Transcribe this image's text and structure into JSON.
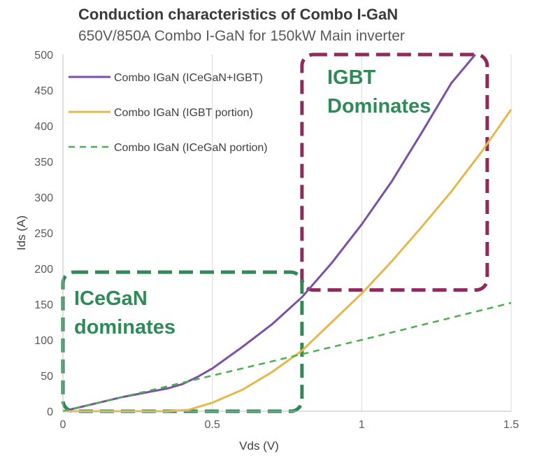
{
  "chart_data": {
    "type": "line",
    "title": "Conduction characteristics of Combo I-GaN",
    "subtitle": "650V/850A Combo I-GaN for 150kW Main inverter",
    "xlabel": "Vds (V)",
    "ylabel": "Ids (A)",
    "xlim": [
      0,
      1.5
    ],
    "ylim": [
      0,
      500
    ],
    "xticks": [
      0,
      0.5,
      1,
      1.5
    ],
    "xtick_labels": [
      "0",
      "0.5",
      "1",
      "1.5"
    ],
    "yticks": [
      0,
      50,
      100,
      150,
      200,
      250,
      300,
      350,
      400,
      450,
      500
    ],
    "ytick_labels": [
      "0",
      "50",
      "100",
      "150",
      "200",
      "250",
      "300",
      "350",
      "400",
      "450",
      "500"
    ],
    "grid": "vertical",
    "legend_position": "top-left",
    "series": [
      {
        "name": "Combo IGaN (ICeGaN+IGBT)",
        "color": "#7b4fa6",
        "style": "solid",
        "x": [
          0,
          0.1,
          0.2,
          0.3,
          0.35,
          0.4,
          0.45,
          0.5,
          0.6,
          0.7,
          0.8,
          0.9,
          1.0,
          1.1,
          1.2,
          1.3,
          1.38
        ],
        "y": [
          0,
          10,
          20,
          28,
          32,
          38,
          48,
          60,
          90,
          122,
          160,
          208,
          262,
          322,
          390,
          460,
          500
        ]
      },
      {
        "name": "Combo IGaN (IGBT portion)",
        "color": "#e6b84c",
        "style": "solid",
        "x": [
          0,
          0.35,
          0.42,
          0.5,
          0.6,
          0.7,
          0.8,
          0.9,
          1.0,
          1.1,
          1.2,
          1.3,
          1.4,
          1.5
        ],
        "y": [
          0,
          0,
          2,
          12,
          30,
          55,
          85,
          125,
          165,
          210,
          258,
          308,
          363,
          423
        ]
      },
      {
        "name": "Combo IGaN (ICeGaN portion)",
        "color": "#4caf50",
        "style": "dashed",
        "x": [
          0,
          0.5,
          1.0,
          1.5
        ],
        "y": [
          0,
          50,
          100,
          152
        ]
      }
    ],
    "annotations": [
      {
        "text_lines": [
          "IGBT",
          "Dominates"
        ],
        "color": "#2e8b57",
        "box_color": "#8e2b5c",
        "region": {
          "x": [
            0.8,
            1.42
          ],
          "y": [
            170,
            500
          ]
        }
      },
      {
        "text_lines": [
          "ICeGaN",
          "dominates"
        ],
        "color": "#2e8b57",
        "box_color": "#2e8b57",
        "region": {
          "x": [
            0,
            0.8
          ],
          "y": [
            0,
            195
          ]
        }
      }
    ]
  }
}
